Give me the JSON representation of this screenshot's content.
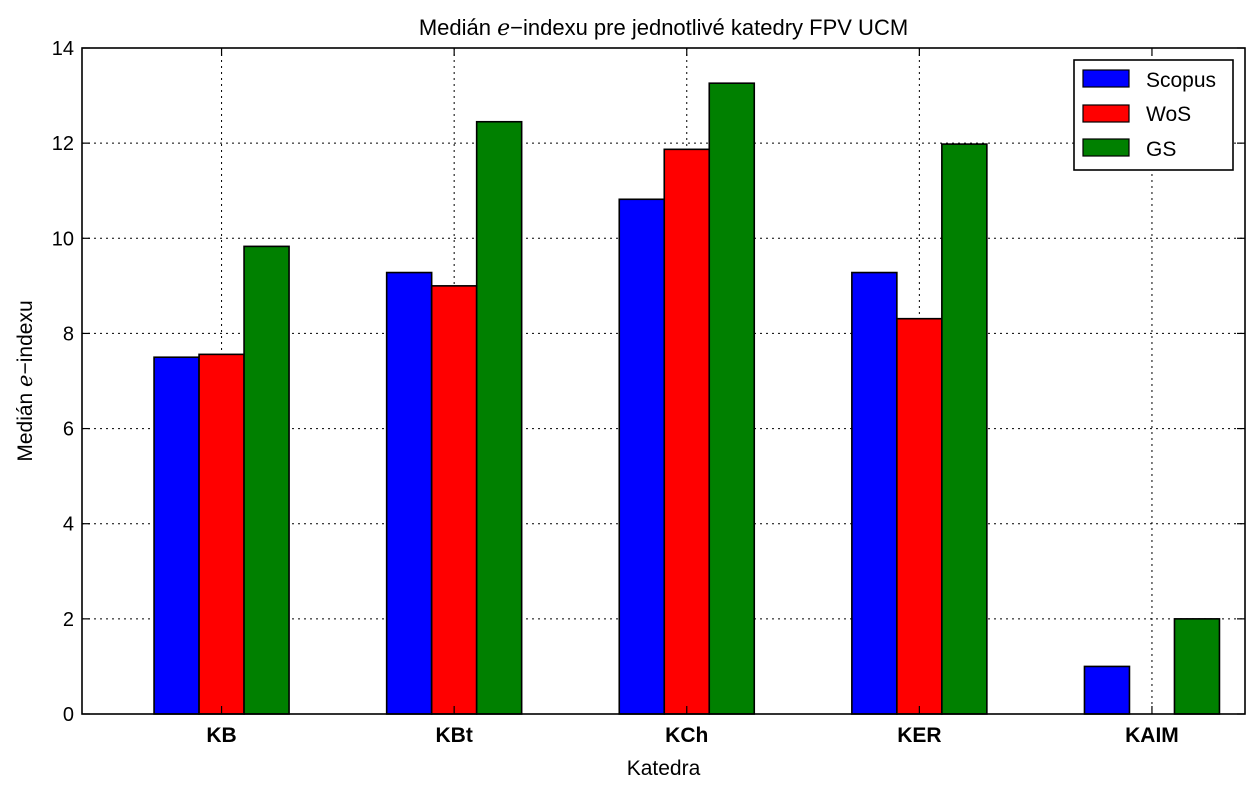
{
  "chart_data": {
    "type": "bar",
    "title_parts": [
      "Medián ",
      "e",
      "−indexu pre jednotlivé katedry FPV UCM"
    ],
    "xlabel": "Katedra",
    "ylabel_parts": [
      "Medián ",
      "e",
      "−indexu"
    ],
    "categories": [
      "KB",
      "KBt",
      "KCh",
      "KER",
      "KAIM"
    ],
    "ylim": [
      0,
      14
    ],
    "yticks": [
      "0",
      "2",
      "4",
      "6",
      "8",
      "10",
      "12",
      "14"
    ],
    "grid": true,
    "legend_position": "top-right",
    "series": [
      {
        "name": "Scopus",
        "color": "#0000ff",
        "values": [
          7.5,
          9.28,
          10.82,
          9.28,
          1.0
        ]
      },
      {
        "name": "WoS",
        "color": "#ff0000",
        "values": [
          7.56,
          9.0,
          11.87,
          8.31,
          0
        ]
      },
      {
        "name": "GS",
        "color": "#008000",
        "values": [
          9.83,
          12.45,
          13.26,
          11.98,
          2.0
        ]
      }
    ]
  }
}
